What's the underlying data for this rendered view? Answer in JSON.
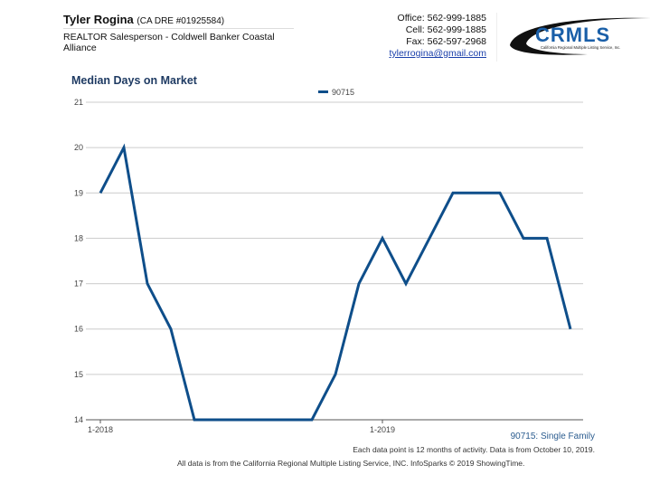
{
  "header": {
    "agent_name": "Tyler Rogina",
    "agent_dre": "(CA DRE #01925584)",
    "agent_title": "REALTOR Salesperson - Coldwell Banker Coastal Alliance",
    "office": "Office: 562-999-1885",
    "cell": "Cell: 562-999-1885",
    "fax": "Fax: 562-597-2968",
    "email": "tylerrogina@gmail.com",
    "logo_text": "CRMLS",
    "logo_subtext": "California Regional Multiple Listing Service, Inc."
  },
  "chart_title": "Median Days on Market",
  "footer": {
    "series_label": "90715: Single Family",
    "note": "Each data point is 12 months of activity. Data is from October 10, 2019.",
    "source": "All data is from the California Regional Multiple Listing Service, INC. InfoSparks © 2019 ShowingTime."
  },
  "colors": {
    "line": "#0e4e8a",
    "grid": "#cccccc",
    "title": "#1f3b63"
  },
  "chart_data": {
    "type": "line",
    "title": "Median Days on Market",
    "xlabel": "",
    "ylabel": "",
    "ylim": [
      14,
      21
    ],
    "yticks": [
      14,
      15,
      16,
      17,
      18,
      19,
      20,
      21
    ],
    "xtick_labels": [
      {
        "index": 0,
        "label": "1-2018"
      },
      {
        "index": 12,
        "label": "1-2019"
      }
    ],
    "x": [
      "1-2018",
      "2-2018",
      "3-2018",
      "4-2018",
      "5-2018",
      "6-2018",
      "7-2018",
      "8-2018",
      "9-2018",
      "10-2018",
      "11-2018",
      "12-2018",
      "1-2019",
      "2-2019",
      "3-2019",
      "4-2019",
      "5-2019",
      "6-2019",
      "7-2019",
      "8-2019",
      "9-2019"
    ],
    "series": [
      {
        "name": "90715",
        "values": [
          19,
          20,
          17,
          16,
          14,
          14,
          14,
          14,
          14,
          14,
          15,
          17,
          18,
          17,
          18,
          19,
          19,
          19,
          18,
          18,
          16
        ]
      }
    ],
    "legend_position": "top",
    "grid": true
  }
}
